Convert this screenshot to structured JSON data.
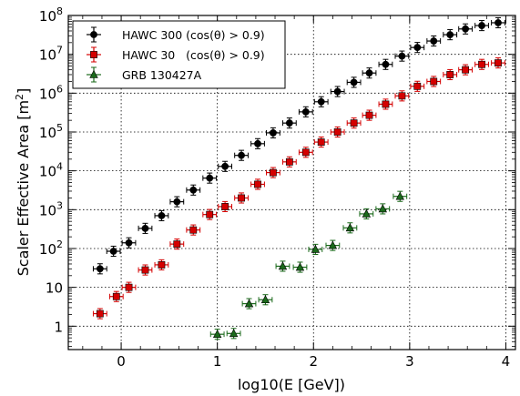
{
  "chart_data": {
    "type": "scatter",
    "xlabel": "log10(E [GeV])",
    "ylabel": "Scaler Effective Area [m",
    "ylabel_sup": "2",
    "ylabel_close": "]",
    "xlim": [
      -0.55,
      4.1
    ],
    "ylim": [
      0.25,
      100000000
    ],
    "yscale": "log",
    "grid": true,
    "legend_position": "top-left",
    "x_ticks": [
      0,
      1,
      2,
      3,
      4
    ],
    "x_tick_labels": [
      "0",
      "1",
      "2",
      "3",
      "4"
    ],
    "y_ticks": [
      1,
      10,
      100,
      1000,
      10000,
      100000,
      1000000,
      10000000,
      100000000
    ],
    "y_tick_labels": [
      {
        "base": "1",
        "exp": ""
      },
      {
        "base": "10",
        "exp": ""
      },
      {
        "base": "10",
        "exp": "2"
      },
      {
        "base": "10",
        "exp": "3"
      },
      {
        "base": "10",
        "exp": "4"
      },
      {
        "base": "10",
        "exp": "5"
      },
      {
        "base": "10",
        "exp": "6"
      },
      {
        "base": "10",
        "exp": "7"
      },
      {
        "base": "10",
        "exp": "8"
      }
    ],
    "series": [
      {
        "name": "HAWC 300 (cos(θ) > 0.9)",
        "marker": "circle",
        "color": "#000000",
        "x": [
          -0.22,
          -0.08,
          0.08,
          0.25,
          0.42,
          0.58,
          0.75,
          0.92,
          1.08,
          1.25,
          1.42,
          1.58,
          1.75,
          1.92,
          2.08,
          2.25,
          2.42,
          2.58,
          2.75,
          2.92,
          3.08,
          3.25,
          3.42,
          3.58,
          3.75,
          3.92
        ],
        "y": [
          30,
          85,
          140,
          330,
          700,
          1600,
          3200,
          6500,
          13000,
          25000,
          50000,
          95000,
          170000,
          330000,
          600000,
          1100000,
          1900000,
          3300000,
          5500000,
          9000000,
          15000000,
          22000000,
          32000000,
          45000000,
          55000000,
          65000000
        ]
      },
      {
        "name": "HAWC 30   (cos(θ) > 0.9)",
        "marker": "square",
        "color": "#d40000",
        "x": [
          -0.22,
          -0.05,
          0.08,
          0.25,
          0.42,
          0.58,
          0.75,
          0.92,
          1.08,
          1.25,
          1.42,
          1.58,
          1.75,
          1.92,
          2.08,
          2.25,
          2.42,
          2.58,
          2.75,
          2.92,
          3.08,
          3.25,
          3.42,
          3.58,
          3.75,
          3.92
        ],
        "y": [
          2.1,
          5.8,
          10,
          28,
          38,
          130,
          300,
          750,
          1200,
          2000,
          4500,
          9000,
          17000,
          30000,
          55000,
          100000,
          170000,
          270000,
          520000,
          850000,
          1500000,
          2000000,
          3000000,
          4000000,
          5500000,
          6000000
        ]
      },
      {
        "name": "GRB 130427A",
        "marker": "triangle",
        "color": "#1b6a1b",
        "x": [
          1.0,
          1.17,
          1.33,
          1.5,
          1.68,
          1.86,
          2.02,
          2.2,
          2.38,
          2.55,
          2.72,
          2.9
        ],
        "y": [
          0.62,
          0.65,
          3.8,
          4.8,
          35,
          33,
          95,
          120,
          340,
          780,
          1050,
          2200
        ]
      }
    ]
  }
}
